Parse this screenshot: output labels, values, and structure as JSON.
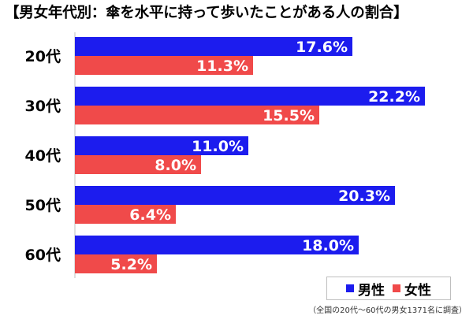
{
  "title": "【男女年代別：傘を水平に持って歩いたことがある人の割合】",
  "footnote": "（全国の20代～60代の男女1371名に調査）",
  "legend": {
    "male": "男性",
    "female": "女性"
  },
  "colors": {
    "male": "#1c1cee",
    "female": "#f04a4a"
  },
  "chart_data": {
    "type": "bar",
    "orientation": "horizontal",
    "categories": [
      "20代",
      "30代",
      "40代",
      "50代",
      "60代"
    ],
    "series": [
      {
        "name": "男性",
        "values": [
          17.6,
          22.2,
          11.0,
          20.3,
          18.0
        ],
        "labels": [
          "17.6%",
          "22.2%",
          "11.0%",
          "20.3%",
          "18.0%"
        ]
      },
      {
        "name": "女性",
        "values": [
          11.3,
          15.5,
          8.0,
          6.4,
          5.2
        ],
        "labels": [
          "11.3%",
          "15.5%",
          "8.0%",
          "6.4%",
          "5.2%"
        ]
      }
    ],
    "title": "【男女年代別：傘を水平に持って歩いたことがある人の割合】",
    "xlabel": "",
    "ylabel": "",
    "xlim": [
      0,
      23
    ],
    "grid": false,
    "legend_position": "bottom-right"
  }
}
